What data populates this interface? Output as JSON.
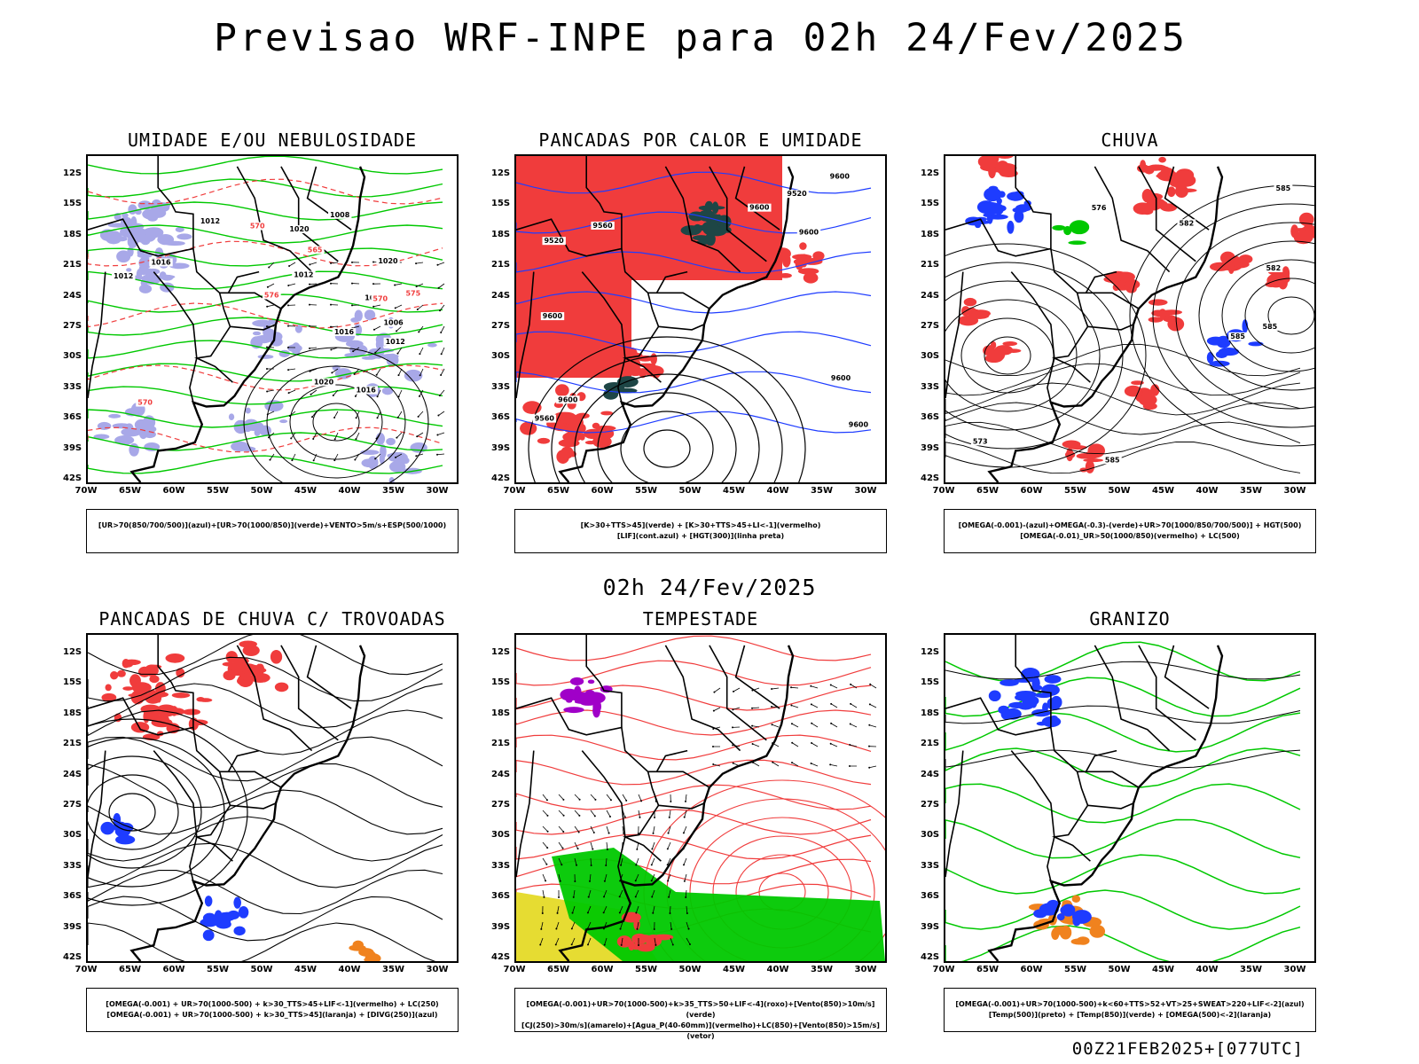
{
  "title": "Previsao WRF-INPE  para 02h 24/Fev/2025",
  "subtitle": "02h 24/Fev/2025",
  "footer": "00Z21FEB2025+[077UTC]",
  "axis": {
    "lat_labels": [
      "12S",
      "15S",
      "18S",
      "21S",
      "24S",
      "27S",
      "30S",
      "33S",
      "36S",
      "39S",
      "42S"
    ],
    "lon_labels": [
      "70W",
      "65W",
      "60W",
      "55W",
      "50W",
      "45W",
      "40W",
      "35W",
      "30W"
    ]
  },
  "colors": {
    "green": "#00c800",
    "red": "#f03c3c",
    "blue": "#1e3cff",
    "lavender": "#a8a8e8",
    "darkteal": "#1e4646",
    "yellow": "#e6dc32",
    "purple": "#a000c8",
    "orange": "#f0821e",
    "black": "#000000"
  },
  "chart_data": [
    {
      "type": "map",
      "title": "UMIDADE E/OU NEBULOSIDADE",
      "legend": [
        "[UR>70(850/700/500)](azul)+[UR>70(1000/850)](verde)+VENTO>5m/s+ESP(500/1000)"
      ],
      "contour_labels": [
        "1012",
        "1012",
        "1012",
        "1012",
        "1016",
        "1020",
        "1016",
        "1008",
        "1006",
        "1012",
        "1020",
        "1020",
        "1016",
        "570",
        "575",
        "570",
        "565",
        "570",
        "576"
      ]
    },
    {
      "type": "map",
      "title": "PANCADAS POR CALOR E UMIDADE",
      "legend": [
        "[K>30+TTS>45](verde) + [K>30+TTS>45+LI<-1](vermelho)",
        "[LIF](cont.azul) + [HGT(300)](linha preta)"
      ],
      "contour_labels": [
        "9600",
        "9600",
        "9600",
        "9600",
        "9600",
        "9600",
        "9560",
        "9560",
        "9520",
        "9520",
        "9600"
      ]
    },
    {
      "type": "map",
      "title": "CHUVA",
      "legend": [
        "[OMEGA(-0.001)-(azul)+OMEGA(-0.3)-(verde)+UR>70(1000/850/700/500)] + HGT(500)",
        "[OMEGA(-0.01)_UR>50(1000/850)(vermelho) + LC(500)"
      ],
      "contour_labels": [
        "582",
        "585",
        "585",
        "585",
        "582",
        "576",
        "573",
        "585"
      ]
    },
    {
      "type": "map",
      "title": "PANCADAS DE CHUVA C/ TROVOADAS",
      "legend": [
        "[OMEGA(-0.001) + UR>70(1000-500) + k>30_TTS>45+LIF<-1](vermelho) + LC(250)",
        "[OMEGA(-0.001) + UR>70(1000-500) + k>30_TTS>45](laranja) + [DIVG(250)](azul)"
      ],
      "contour_labels": []
    },
    {
      "type": "map",
      "title": "TEMPESTADE",
      "legend": [
        "[OMEGA(-0.001)+UR>70(1000-500)+k>35_TTS>50+LIF<-4](roxo)+[Vento(850)>10m/s](verde)",
        "[CJ(250)>30m/s](amarelo)+[Agua_P(40-60mm)](vermelho)+LC(850)+[Vento(850)>15m/s](vetor)"
      ],
      "contour_labels": []
    },
    {
      "type": "map",
      "title": "GRANIZO",
      "legend": [
        "[OMEGA(-0.001)+UR>70(1000-500)+k<60+TTS>52+VT>25+SWEAT>220+LIF<-2](azul)",
        "[Temp(500)](preto) + [Temp(850)](verde) + [OMEGA(500)<-2](laranja)"
      ],
      "contour_labels": []
    }
  ]
}
